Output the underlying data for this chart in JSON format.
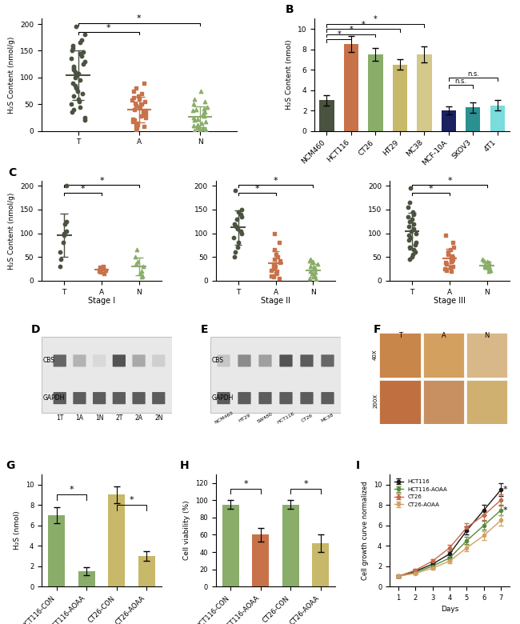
{
  "panel_A": {
    "T_data": [
      195,
      180,
      170,
      165,
      160,
      155,
      150,
      148,
      145,
      140,
      135,
      130,
      125,
      120,
      118,
      115,
      110,
      108,
      105,
      100,
      95,
      90,
      85,
      80,
      75,
      70,
      65,
      60,
      55,
      50,
      45,
      40,
      35,
      25,
      20
    ],
    "A_data": [
      90,
      80,
      75,
      70,
      65,
      62,
      60,
      58,
      55,
      52,
      50,
      48,
      45,
      43,
      40,
      38,
      35,
      32,
      30,
      28,
      25,
      22,
      20,
      18,
      15,
      12,
      10,
      8,
      5,
      2
    ],
    "N_data": [
      75,
      60,
      55,
      50,
      45,
      42,
      40,
      38,
      35,
      32,
      30,
      28,
      25,
      22,
      20,
      18,
      15,
      12,
      10,
      8,
      6,
      5,
      4,
      3,
      2,
      1
    ],
    "T_color": "#4a5240",
    "A_color": "#c8724a",
    "N_color": "#8aad6a",
    "ylabel": "H₂S Content (nmol/g)",
    "ylim": [
      0,
      210
    ],
    "yticks": [
      0,
      50,
      100,
      150,
      200
    ]
  },
  "panel_B": {
    "categories": [
      "NCM460",
      "HCT116",
      "CT26",
      "HT29",
      "MC38",
      "MCF-10A",
      "SKOV3",
      "4T1"
    ],
    "values": [
      3.0,
      8.5,
      7.5,
      6.5,
      7.5,
      2.0,
      2.3,
      2.5
    ],
    "errors": [
      0.5,
      0.8,
      0.6,
      0.5,
      0.8,
      0.4,
      0.5,
      0.5
    ],
    "colors": [
      "#4a5240",
      "#c8724a",
      "#8aad6a",
      "#c8b86a",
      "#d4c88a",
      "#1a2060",
      "#2a9090",
      "#7adcdc"
    ],
    "ylabel": "H₂S Content (nmol)",
    "ylim": [
      0,
      11
    ],
    "yticks": [
      0,
      2,
      4,
      6,
      8,
      10
    ]
  },
  "panel_C_stages": [
    {
      "label": "Stage I",
      "T_data": [
        200,
        125,
        120,
        105,
        100,
        95,
        80,
        60,
        45,
        30
      ],
      "A_data": [
        30,
        28,
        25,
        22,
        20,
        18,
        15
      ],
      "N_data": [
        65,
        50,
        40,
        35,
        30,
        20,
        15,
        10,
        8
      ]
    },
    {
      "label": "Stage II",
      "T_data": [
        190,
        150,
        145,
        140,
        135,
        130,
        120,
        115,
        110,
        105,
        100,
        90,
        80,
        70,
        60,
        50
      ],
      "A_data": [
        100,
        80,
        65,
        55,
        50,
        45,
        42,
        38,
        35,
        30,
        28,
        25,
        22,
        20,
        15,
        10,
        8,
        5
      ],
      "N_data": [
        45,
        42,
        40,
        35,
        30,
        28,
        25,
        20,
        18,
        15,
        12,
        10,
        8,
        5,
        3
      ]
    },
    {
      "label": "Stage III",
      "T_data": [
        195,
        165,
        155,
        145,
        140,
        135,
        130,
        125,
        120,
        115,
        110,
        105,
        100,
        95,
        90,
        85,
        80,
        75,
        70,
        65,
        60,
        55,
        50,
        45
      ],
      "A_data": [
        95,
        80,
        70,
        65,
        60,
        55,
        52,
        48,
        45,
        42,
        40,
        38,
        35,
        30,
        28,
        25,
        22,
        20
      ],
      "N_data": [
        45,
        42,
        40,
        38,
        36,
        34,
        32,
        30,
        28,
        26,
        25,
        22,
        20
      ]
    }
  ],
  "panel_D": {
    "labels": [
      "1T",
      "1A",
      "1N",
      "2T",
      "2A",
      "2N"
    ],
    "CBS_intensities": [
      0.8,
      0.4,
      0.2,
      0.9,
      0.45,
      0.25
    ],
    "GAPDH_intensities": [
      0.85,
      0.85,
      0.85,
      0.85,
      0.85,
      0.85
    ]
  },
  "panel_E": {
    "labels": [
      "NCM460",
      "HT29",
      "SW480",
      "HCT116",
      "CT26",
      "MC38"
    ],
    "CBS_intensities": [
      0.3,
      0.6,
      0.5,
      0.9,
      0.85,
      0.8
    ],
    "GAPDH_intensities": [
      0.85,
      0.85,
      0.85,
      0.85,
      0.85,
      0.85
    ]
  },
  "panel_G": {
    "categories": [
      "HCT116-CON",
      "HCT116-AOAA",
      "CT26-CON",
      "CT26-AOAA"
    ],
    "values": [
      7.0,
      1.5,
      9.0,
      3.0
    ],
    "errors": [
      0.8,
      0.4,
      0.8,
      0.5
    ],
    "colors": [
      "#8aad6a",
      "#8aad6a",
      "#c8b86a",
      "#c8b86a"
    ],
    "ylabel": "H₂S (nmol)",
    "ylim": [
      0,
      11
    ],
    "yticks": [
      0,
      2,
      4,
      6,
      8,
      10
    ]
  },
  "panel_H": {
    "categories": [
      "HCT116-CON",
      "HCT116-AOAA",
      "CT26-CON",
      "CT26-AOAA"
    ],
    "values": [
      95,
      60,
      95,
      50
    ],
    "errors": [
      5,
      8,
      5,
      10
    ],
    "colors": [
      "#8aad6a",
      "#c8724a",
      "#8aad6a",
      "#c8b86a"
    ],
    "ylabel": "Cell viability (%)",
    "ylim": [
      0,
      130
    ],
    "yticks": [
      0,
      20,
      40,
      60,
      80,
      100,
      120
    ]
  },
  "panel_I": {
    "days": [
      1,
      2,
      3,
      4,
      5,
      6,
      7
    ],
    "HCT116": [
      1.0,
      1.5,
      2.2,
      3.2,
      5.5,
      7.5,
      9.5
    ],
    "HCT116_AOAA": [
      1.0,
      1.4,
      2.0,
      2.8,
      4.5,
      6.0,
      7.5
    ],
    "CT26": [
      1.0,
      1.6,
      2.5,
      3.8,
      5.8,
      7.0,
      8.5
    ],
    "CT26_AOAA": [
      1.0,
      1.3,
      1.8,
      2.5,
      3.8,
      5.0,
      6.5
    ],
    "HCT116_err": [
      0.1,
      0.15,
      0.2,
      0.3,
      0.4,
      0.5,
      0.6
    ],
    "HCT116_AOAA_err": [
      0.1,
      0.12,
      0.18,
      0.25,
      0.35,
      0.45,
      0.5
    ],
    "CT26_err": [
      0.1,
      0.15,
      0.2,
      0.3,
      0.4,
      0.45,
      0.55
    ],
    "CT26_AOAA_err": [
      0.1,
      0.12,
      0.15,
      0.2,
      0.3,
      0.4,
      0.5
    ],
    "labels": [
      "HCT116",
      "HCT116-AOAA",
      "CT26",
      "CT26-AOAA"
    ],
    "line_colors": [
      "#1a1a1a",
      "#5a8a3a",
      "#c86a4a",
      "#d4a060"
    ],
    "ylabel": "Cell growth curve normalized",
    "xlabel": "Days",
    "ylim": [
      0,
      11
    ],
    "yticks": [
      0,
      2,
      4,
      6,
      8,
      10
    ]
  }
}
